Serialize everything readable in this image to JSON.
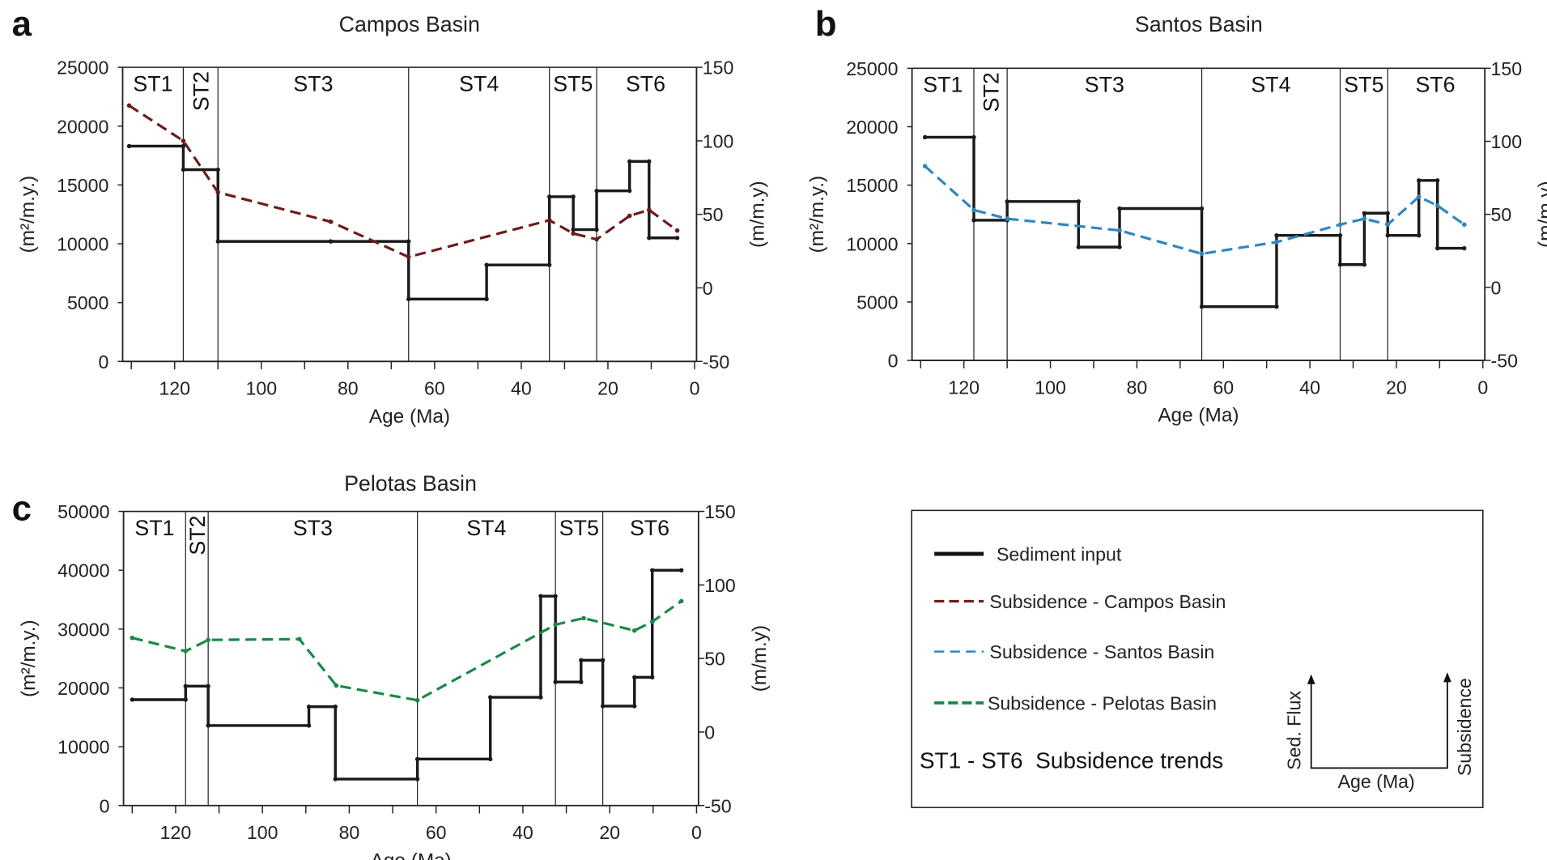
{
  "chart_data": [
    {
      "panel": "a",
      "title": "Campos Basin",
      "type": "line",
      "xlabel": "Age (Ma)",
      "ylabel": "(m²/m.y.)",
      "y2label": "(m/m.y)",
      "xlim": [
        132,
        0
      ],
      "ylim": [
        0,
        25000
      ],
      "y2lim": [
        -50,
        150
      ],
      "xticks": [
        120,
        100,
        80,
        60,
        40,
        20,
        0
      ],
      "yticks": [
        0,
        5000,
        10000,
        15000,
        20000,
        25000
      ],
      "y2ticks": [
        -50,
        0,
        50,
        100,
        150
      ],
      "boundaries": [
        118,
        110,
        66,
        33.5,
        22.6
      ],
      "trends": [
        {
          "label": "ST1",
          "from": 132,
          "to": 118
        },
        {
          "label": "ST2",
          "from": 118,
          "to": 110,
          "vertical": true
        },
        {
          "label": "ST3",
          "from": 110,
          "to": 66
        },
        {
          "label": "ST4",
          "from": 66,
          "to": 33.5
        },
        {
          "label": "ST5",
          "from": 33.5,
          "to": 22.6
        },
        {
          "label": "ST6",
          "from": 22.6,
          "to": 0
        }
      ],
      "sediment_input": [
        [
          130.5,
          118,
          18300
        ],
        [
          118,
          110,
          16300
        ],
        [
          110,
          84,
          10200
        ],
        [
          84,
          66,
          10200
        ],
        [
          66,
          48,
          5300
        ],
        [
          48,
          33.5,
          8200
        ],
        [
          33.5,
          28,
          14000
        ],
        [
          28,
          22.6,
          11200
        ],
        [
          22.6,
          15,
          14500
        ],
        [
          15,
          10.5,
          17000
        ],
        [
          10.5,
          4,
          10500
        ]
      ],
      "subsidence": {
        "color": "#6b1c1c",
        "points": [
          [
            130.5,
            124
          ],
          [
            118,
            100
          ],
          [
            110,
            65
          ],
          [
            84,
            45
          ],
          [
            66,
            21
          ],
          [
            33.5,
            46
          ],
          [
            28,
            37
          ],
          [
            22.6,
            33
          ],
          [
            15,
            49
          ],
          [
            10.5,
            53
          ],
          [
            4,
            39
          ]
        ]
      }
    },
    {
      "panel": "b",
      "title": "Santos Basin",
      "type": "line",
      "xlabel": "Age (Ma)",
      "ylabel": "(m²/m.y.)",
      "y2label": "(m/m.y)",
      "xlim": [
        132,
        0
      ],
      "ylim": [
        0,
        25000
      ],
      "y2lim": [
        -50,
        150
      ],
      "xticks": [
        120,
        100,
        80,
        60,
        40,
        20,
        0
      ],
      "yticks": [
        0,
        5000,
        10000,
        15000,
        20000,
        25000
      ],
      "y2ticks": [
        -50,
        0,
        50,
        100,
        150
      ],
      "boundaries": [
        117.7,
        110,
        65,
        33,
        22
      ],
      "trends": [
        {
          "label": "ST1",
          "from": 132,
          "to": 117.7
        },
        {
          "label": "ST2",
          "from": 117.7,
          "to": 110,
          "vertical": true
        },
        {
          "label": "ST3",
          "from": 110,
          "to": 65
        },
        {
          "label": "ST4",
          "from": 65,
          "to": 33
        },
        {
          "label": "ST5",
          "from": 33,
          "to": 22
        },
        {
          "label": "ST6",
          "from": 22,
          "to": 0
        }
      ],
      "sediment_input": [
        [
          129,
          117.7,
          19100
        ],
        [
          117.7,
          110,
          12000
        ],
        [
          110,
          93.5,
          13600
        ],
        [
          93.5,
          84,
          9700
        ],
        [
          84,
          65,
          13000
        ],
        [
          65,
          47.7,
          4600
        ],
        [
          47.7,
          33,
          10700
        ],
        [
          33,
          27.4,
          8200
        ],
        [
          27.4,
          22,
          12600
        ],
        [
          22,
          14.8,
          10700
        ],
        [
          14.8,
          10.5,
          15400
        ],
        [
          10.5,
          4.3,
          9600
        ]
      ],
      "subsidence": {
        "color": "#2f86c0",
        "points": [
          [
            129,
            83
          ],
          [
            117.7,
            53
          ],
          [
            110,
            47
          ],
          [
            84,
            39
          ],
          [
            65,
            23
          ],
          [
            47.7,
            31
          ],
          [
            33,
            43
          ],
          [
            27.4,
            47
          ],
          [
            22,
            43
          ],
          [
            14.8,
            62
          ],
          [
            10.5,
            56
          ],
          [
            4.3,
            43
          ]
        ]
      }
    },
    {
      "panel": "c",
      "title": "Pelotas Basin",
      "type": "line",
      "xlabel": "Age (Ma)",
      "ylabel": "(m²/m.y.)",
      "y2label": "(m/m.y)",
      "xlim": [
        132,
        0
      ],
      "ylim": [
        0,
        50000
      ],
      "y2lim": [
        -50,
        150
      ],
      "xticks": [
        120,
        100,
        80,
        60,
        40,
        20,
        0
      ],
      "yticks": [
        0,
        10000,
        20000,
        30000,
        40000,
        50000
      ],
      "y2ticks": [
        -50,
        0,
        50,
        100,
        150
      ],
      "boundaries": [
        117.7,
        112.5,
        64.3,
        32.5,
        21.6
      ],
      "trends": [
        {
          "label": "ST1",
          "from": 132,
          "to": 117.7
        },
        {
          "label": "ST2",
          "from": 117.7,
          "to": 112.5,
          "vertical": true
        },
        {
          "label": "ST3",
          "from": 112.5,
          "to": 64.3
        },
        {
          "label": "ST4",
          "from": 64.3,
          "to": 32.5
        },
        {
          "label": "ST5",
          "from": 32.5,
          "to": 21.6
        },
        {
          "label": "ST6",
          "from": 21.6,
          "to": 0
        }
      ],
      "sediment_input": [
        [
          130,
          117.7,
          18000
        ],
        [
          117.7,
          112.5,
          20300
        ],
        [
          112.5,
          89.3,
          13600
        ],
        [
          89.3,
          83.2,
          16800
        ],
        [
          83.2,
          64.3,
          4500
        ],
        [
          64.3,
          47.5,
          7900
        ],
        [
          47.5,
          35.9,
          18400
        ],
        [
          35.9,
          32.5,
          35600
        ],
        [
          32.5,
          26.6,
          21000
        ],
        [
          26.6,
          21.6,
          24700
        ],
        [
          21.6,
          14.3,
          16900
        ],
        [
          14.3,
          10.2,
          21800
        ],
        [
          10.2,
          3.5,
          40000
        ]
      ],
      "subsidence": {
        "color": "#178a46",
        "points": [
          [
            130,
            64
          ],
          [
            117.7,
            55
          ],
          [
            112.5,
            62.6
          ],
          [
            91.5,
            63.2
          ],
          [
            83,
            31.6
          ],
          [
            64.3,
            21.6
          ],
          [
            32.5,
            73
          ],
          [
            26,
            77.4
          ],
          [
            14.3,
            69
          ],
          [
            10.2,
            75
          ],
          [
            3.5,
            89
          ]
        ]
      }
    }
  ],
  "legend": {
    "items": [
      {
        "label": "Sediment input",
        "color": "#111111",
        "style": "solid"
      },
      {
        "label": "Subsidence - Campos Basin",
        "color": "#6b1c1c",
        "style": "dashed"
      },
      {
        "label": "Subsidence - Santos Basin",
        "color": "#2f86c0",
        "style": "dashed"
      },
      {
        "label": "Subsidence - Pelotas Basin",
        "color": "#178a46",
        "style": "dashed"
      }
    ],
    "trends_note": "ST1 - ST6  Subsidence trends",
    "schematic": {
      "left_axis": "Sed. Flux",
      "right_axis": "Subsidence",
      "x_axis": "Age (Ma)"
    }
  }
}
